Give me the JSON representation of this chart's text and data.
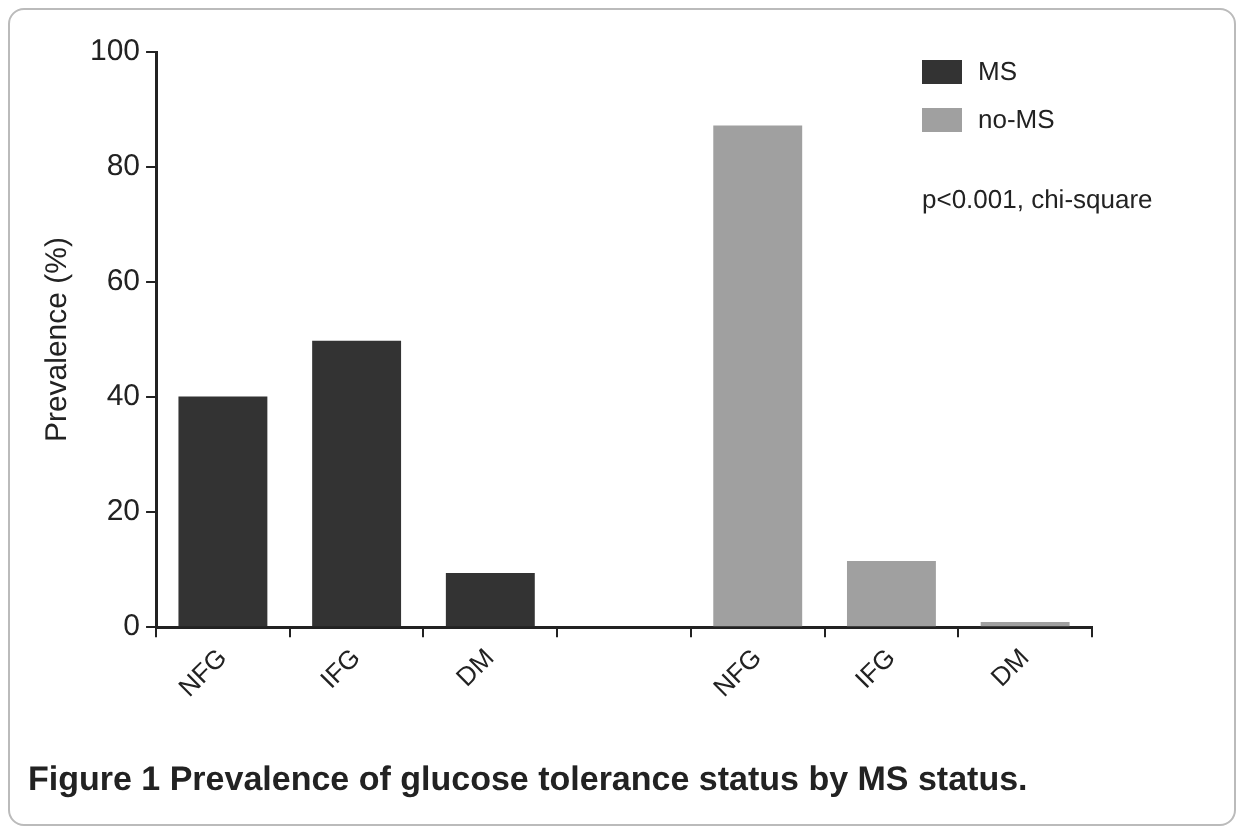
{
  "chart_data": {
    "type": "bar",
    "title": "Figure 1 Prevalence of glucose tolerance status by MS status.",
    "ylabel": "Prevalence (%)",
    "categories": [
      "NFG",
      "IFG",
      "DM",
      null,
      "NFG",
      "IFG",
      "DM"
    ],
    "series": [
      {
        "name": "MS",
        "color": "#333333",
        "values": [
          40.1,
          49.8,
          9.4,
          null,
          null,
          null,
          null
        ]
      },
      {
        "name": "no-MS",
        "color": "#a0a0a0",
        "values": [
          null,
          null,
          null,
          null,
          87.2,
          11.5,
          0.9
        ]
      }
    ],
    "ylim": [
      0,
      100
    ],
    "yticks": [
      0,
      20,
      40,
      60,
      80,
      100
    ],
    "grid": false,
    "legend": "top right",
    "annotations": [
      "p<0.001, chi-square"
    ]
  }
}
